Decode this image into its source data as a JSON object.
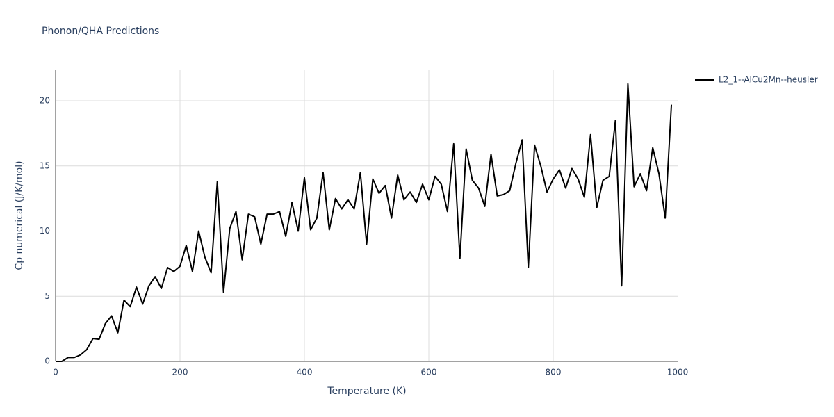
{
  "chart_data": {
    "type": "line",
    "title": "Phonon/QHA Predictions",
    "x_label": "Temperature (K)",
    "y_label": "Cp numerical (J/K/mol)",
    "x": [
      0,
      10,
      20,
      30,
      40,
      50,
      60,
      70,
      80,
      90,
      100,
      110,
      120,
      130,
      140,
      150,
      160,
      170,
      180,
      190,
      200,
      210,
      220,
      230,
      240,
      250,
      260,
      270,
      280,
      290,
      300,
      310,
      320,
      330,
      340,
      350,
      360,
      370,
      380,
      390,
      400,
      410,
      420,
      430,
      440,
      450,
      460,
      470,
      480,
      490,
      500,
      510,
      520,
      530,
      540,
      550,
      560,
      570,
      580,
      590,
      600,
      610,
      620,
      630,
      640,
      650,
      660,
      670,
      680,
      690,
      700,
      710,
      720,
      730,
      740,
      750,
      760,
      770,
      780,
      790,
      800,
      810,
      820,
      830,
      840,
      850,
      860,
      870,
      880,
      890,
      900,
      910,
      920,
      930,
      940,
      950,
      960,
      970,
      980,
      990
    ],
    "series": [
      {
        "name": "L2_1--AlCu2Mn--heusler",
        "color": "#000000",
        "values": [
          0,
          0,
          0.3,
          0.3,
          0.5,
          0.9,
          1.75,
          1.7,
          2.9,
          3.5,
          2.2,
          4.7,
          4.2,
          5.7,
          4.4,
          5.8,
          6.5,
          5.6,
          7.2,
          6.9,
          7.3,
          8.9,
          6.9,
          10.0,
          8.0,
          6.8,
          13.8,
          5.3,
          10.2,
          11.5,
          7.8,
          11.3,
          11.1,
          9.0,
          11.3,
          11.3,
          11.5,
          9.6,
          12.2,
          10.0,
          14.1,
          10.1,
          11.0,
          14.5,
          10.1,
          12.5,
          11.7,
          12.4,
          11.7,
          14.5,
          9.0,
          14.0,
          12.9,
          13.5,
          11.0,
          14.3,
          12.4,
          13.0,
          12.2,
          13.6,
          12.4,
          14.2,
          13.6,
          11.5,
          16.7,
          7.9,
          16.3,
          13.9,
          13.3,
          11.9,
          15.9,
          12.7,
          12.8,
          13.1,
          15.2,
          17.0,
          7.2,
          16.6,
          15.0,
          13.0,
          14.0,
          14.7,
          13.3,
          14.8,
          14.0,
          12.6,
          17.4,
          11.8,
          13.9,
          14.2,
          18.5,
          5.8,
          21.3,
          13.4,
          14.4,
          13.1,
          16.4,
          14.4,
          11.0,
          19.7
        ]
      }
    ],
    "xlim": [
      0,
      1000
    ],
    "xticks": [
      0,
      200,
      400,
      600,
      800,
      1000
    ],
    "ylim": [
      0,
      22.4
    ],
    "yticks": [
      0,
      5,
      10,
      15,
      20
    ],
    "grid": true,
    "legend": "right"
  }
}
